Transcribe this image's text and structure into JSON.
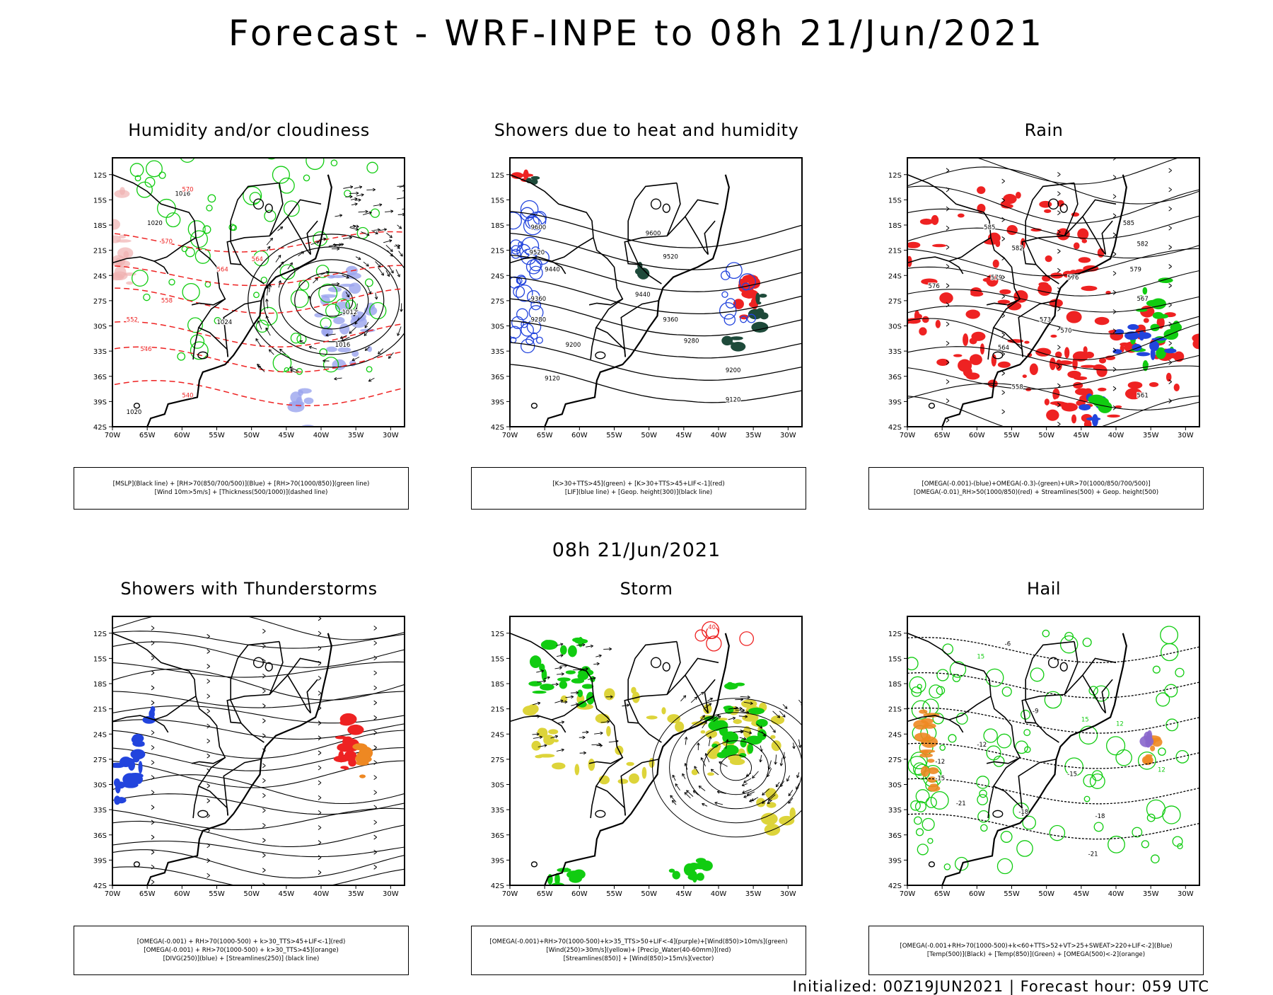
{
  "header": {
    "title": "Forecast - WRF-INPE to 08h 21/Jun/2021",
    "subtitle": "08h 21/Jun/2021"
  },
  "footer": {
    "text": "Initialized: 00Z19JUN2021 | Forecast hour: 059 UTC"
  },
  "axes": {
    "lat_labels": [
      "12S",
      "15S",
      "18S",
      "21S",
      "24S",
      "27S",
      "30S",
      "33S",
      "36S",
      "39S",
      "42S"
    ],
    "lon_labels": [
      "70W",
      "65W",
      "60W",
      "55W",
      "50W",
      "45W",
      "40W",
      "35W",
      "30W"
    ]
  },
  "colors": {
    "black": "#000000",
    "red": "#ee2222",
    "blue": "#2244dd",
    "green": "#11cc11",
    "orange": "#ee8822",
    "yellow": "#ddd43a",
    "purple": "#8866cc",
    "dark": "#1e4a3a",
    "lavender": "#9aa4ee"
  },
  "panels": [
    {
      "title": "Humidity and/or cloudiness",
      "legend": [
        "[MSLP](Black line) + [RH>70(850/700/500)](Blue) + [RH>70(1000/850)](green line)",
        "[Wind 10m>5m/s] + [Thickness(500/1000)](dashed line)"
      ],
      "contour_labels": [
        "1016",
        "1020",
        "1024",
        "1012",
        "1016",
        "1020",
        "570",
        "564",
        "558",
        "552",
        "546",
        "540",
        "570",
        "564"
      ]
    },
    {
      "title": "Showers due to heat and humidity",
      "legend": [
        "[K>30+TTS>45](green) + [K>30+TTS>45+LIF<-1](red)",
        "[LIF](blue line) + [Geop. height(300)](black line)"
      ],
      "contour_labels": [
        "9600",
        "9520",
        "9440",
        "9360",
        "9280",
        "9200",
        "9120",
        "9600",
        "9520",
        "9440",
        "9360",
        "9280",
        "9200",
        "9120"
      ]
    },
    {
      "title": "Rain",
      "legend": [
        "[OMEGA(-0.001)-(blue)+OMEGA(-0.3)-(green)+UR>70(1000/850/700/500)]",
        "[OMEGA(-0.01)_RH>50(1000/850)(red) + Streamlines(500) + Geop. height(500)"
      ],
      "contour_labels": [
        "585",
        "582",
        "579",
        "576",
        "573",
        "570",
        "567",
        "564",
        "561",
        "558",
        "585",
        "582",
        "579",
        "576"
      ]
    },
    {
      "title": "Showers with Thunderstorms",
      "legend": [
        "[OMEGA(-0.001) + RH>70(1000-500) + k>30_TTS>45+LIF<-1](red)",
        "[OMEGA(-0.001) + RH>70(1000-500) + k>30_TTS>45](orange)",
        "[DIVG(250)](blue) + [Streamlines(250)] (black line)"
      ],
      "contour_labels": []
    },
    {
      "title": "Storm",
      "legend": [
        "[OMEGA(-0.001)+RH>70(1000-500)+k>35_TTS>50+LIF<-4](purple)+[Wind(850)>10m/s](green)",
        "[Wind(250)>30m/s](yellow)+ [Precip_Water(40-60mm)](red)",
        "[Streamlines(850)] + [Wind(850)>15m/s](vector)"
      ],
      "contour_labels": [
        "40"
      ]
    },
    {
      "title": "Hail",
      "legend": [
        "[OMEGA(-0.001+RH>70(1000-500)+k<60+TTS>52+VT>25+SWEAT>220+LIF<-2](Blue)",
        "[Temp(500)](Black) + [Temp(850)](Green) + [OMEGA(500)<-2](orange)"
      ],
      "contour_labels": [
        "-6",
        "-9",
        "-12",
        "-15",
        "-18",
        "-21",
        "-12",
        "-15",
        "-18",
        "-21",
        "15",
        "12",
        "15",
        "12"
      ]
    }
  ]
}
